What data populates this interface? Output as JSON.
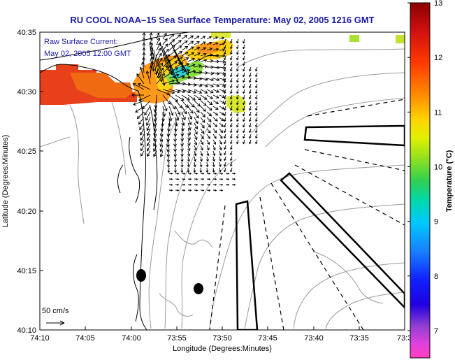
{
  "title": "RU COOL  NOAA–15  Sea Surface Temperature:  May 02, 2005 1216 GMT",
  "overlay": {
    "line1": "Raw Surface Current:",
    "line2": "May 02, 2005 12:00 GMT"
  },
  "scale_label": "50 cm/s",
  "chart_data": {
    "type": "map",
    "x_axis": {
      "label": "Longitude (Degrees:Minutes)",
      "ticks": [
        "74:10",
        "74:05",
        "74:00",
        "73:55",
        "73:50",
        "73:45",
        "73:40",
        "73:35",
        "73:3"
      ]
    },
    "y_axis": {
      "label": "Latitude (Degrees:Minutes)",
      "ticks": [
        "40:35",
        "40:30",
        "40:25",
        "40:20",
        "40:15",
        "40:10"
      ]
    },
    "colorbar": {
      "label": "Temperature (°C)",
      "ticks": [
        "13",
        "12",
        "11",
        "10",
        "9",
        "8",
        "7"
      ],
      "range": [
        6.5,
        13
      ]
    }
  }
}
